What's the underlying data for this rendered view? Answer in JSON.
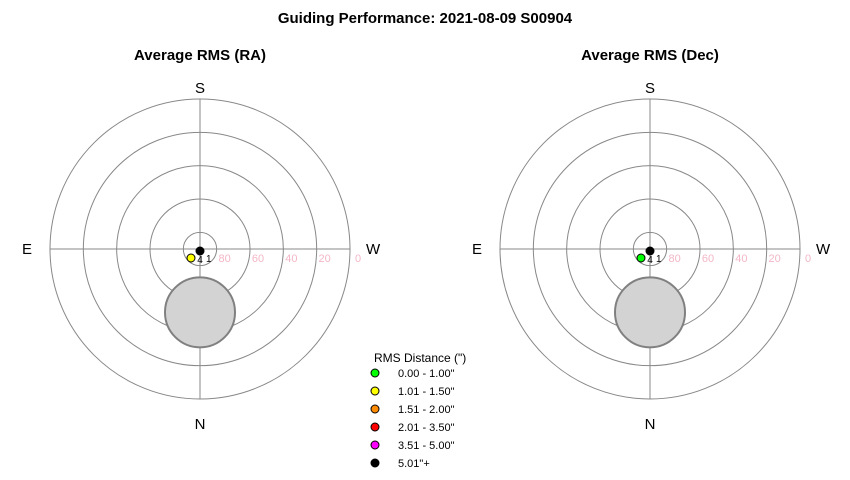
{
  "title": "Guiding Performance: 2021-08-09 S00904",
  "chart_data": [
    {
      "type": "polar-scatter",
      "title": "Average RMS (RA)",
      "directions": {
        "top": "S",
        "bottom": "N",
        "left": "E",
        "right": "W"
      },
      "r_ticks": [
        "80",
        "60",
        "40",
        "20",
        "0"
      ],
      "altitude_rings": [
        80,
        60,
        40,
        20,
        0
      ],
      "points": [
        {
          "alt": 90,
          "label": "1",
          "rms_bin": "5.01\"+",
          "color": "#000000"
        },
        {
          "alt": 85,
          "label": "",
          "rms_bin": "1.01 - 1.50\"",
          "color": "#ffff00"
        },
        {
          "alt": 84,
          "label": "4",
          "rms_bin": "5.01\"+",
          "color": "#000000"
        }
      ],
      "shaded_region": {
        "center_alt": 52,
        "radius_deg": 21,
        "color": "#d3d3d3"
      }
    },
    {
      "type": "polar-scatter",
      "title": "Average RMS (Dec)",
      "directions": {
        "top": "S",
        "bottom": "N",
        "left": "E",
        "right": "W"
      },
      "r_ticks": [
        "80",
        "60",
        "40",
        "20",
        "0"
      ],
      "altitude_rings": [
        80,
        60,
        40,
        20,
        0
      ],
      "points": [
        {
          "alt": 90,
          "label": "1",
          "rms_bin": "5.01\"+",
          "color": "#000000"
        },
        {
          "alt": 85,
          "label": "",
          "rms_bin": "0.00 - 1.00\"",
          "color": "#00ff00"
        },
        {
          "alt": 84,
          "label": "4",
          "rms_bin": "5.01\"+",
          "color": "#000000"
        }
      ],
      "shaded_region": {
        "center_alt": 52,
        "radius_deg": 21,
        "color": "#d3d3d3"
      }
    }
  ],
  "legend": {
    "title": "RMS Distance (\")",
    "items": [
      {
        "label": "0.00 - 1.00\"",
        "color": "#00ff00"
      },
      {
        "label": "1.01 - 1.50\"",
        "color": "#ffff00"
      },
      {
        "label": "1.51 - 2.00\"",
        "color": "#ff8c00"
      },
      {
        "label": "2.01 - 3.50\"",
        "color": "#ff0000"
      },
      {
        "label": "3.51 - 5.00\"",
        "color": "#ff00ff"
      },
      {
        "label": "5.01\"+",
        "color": "#000000"
      }
    ]
  }
}
